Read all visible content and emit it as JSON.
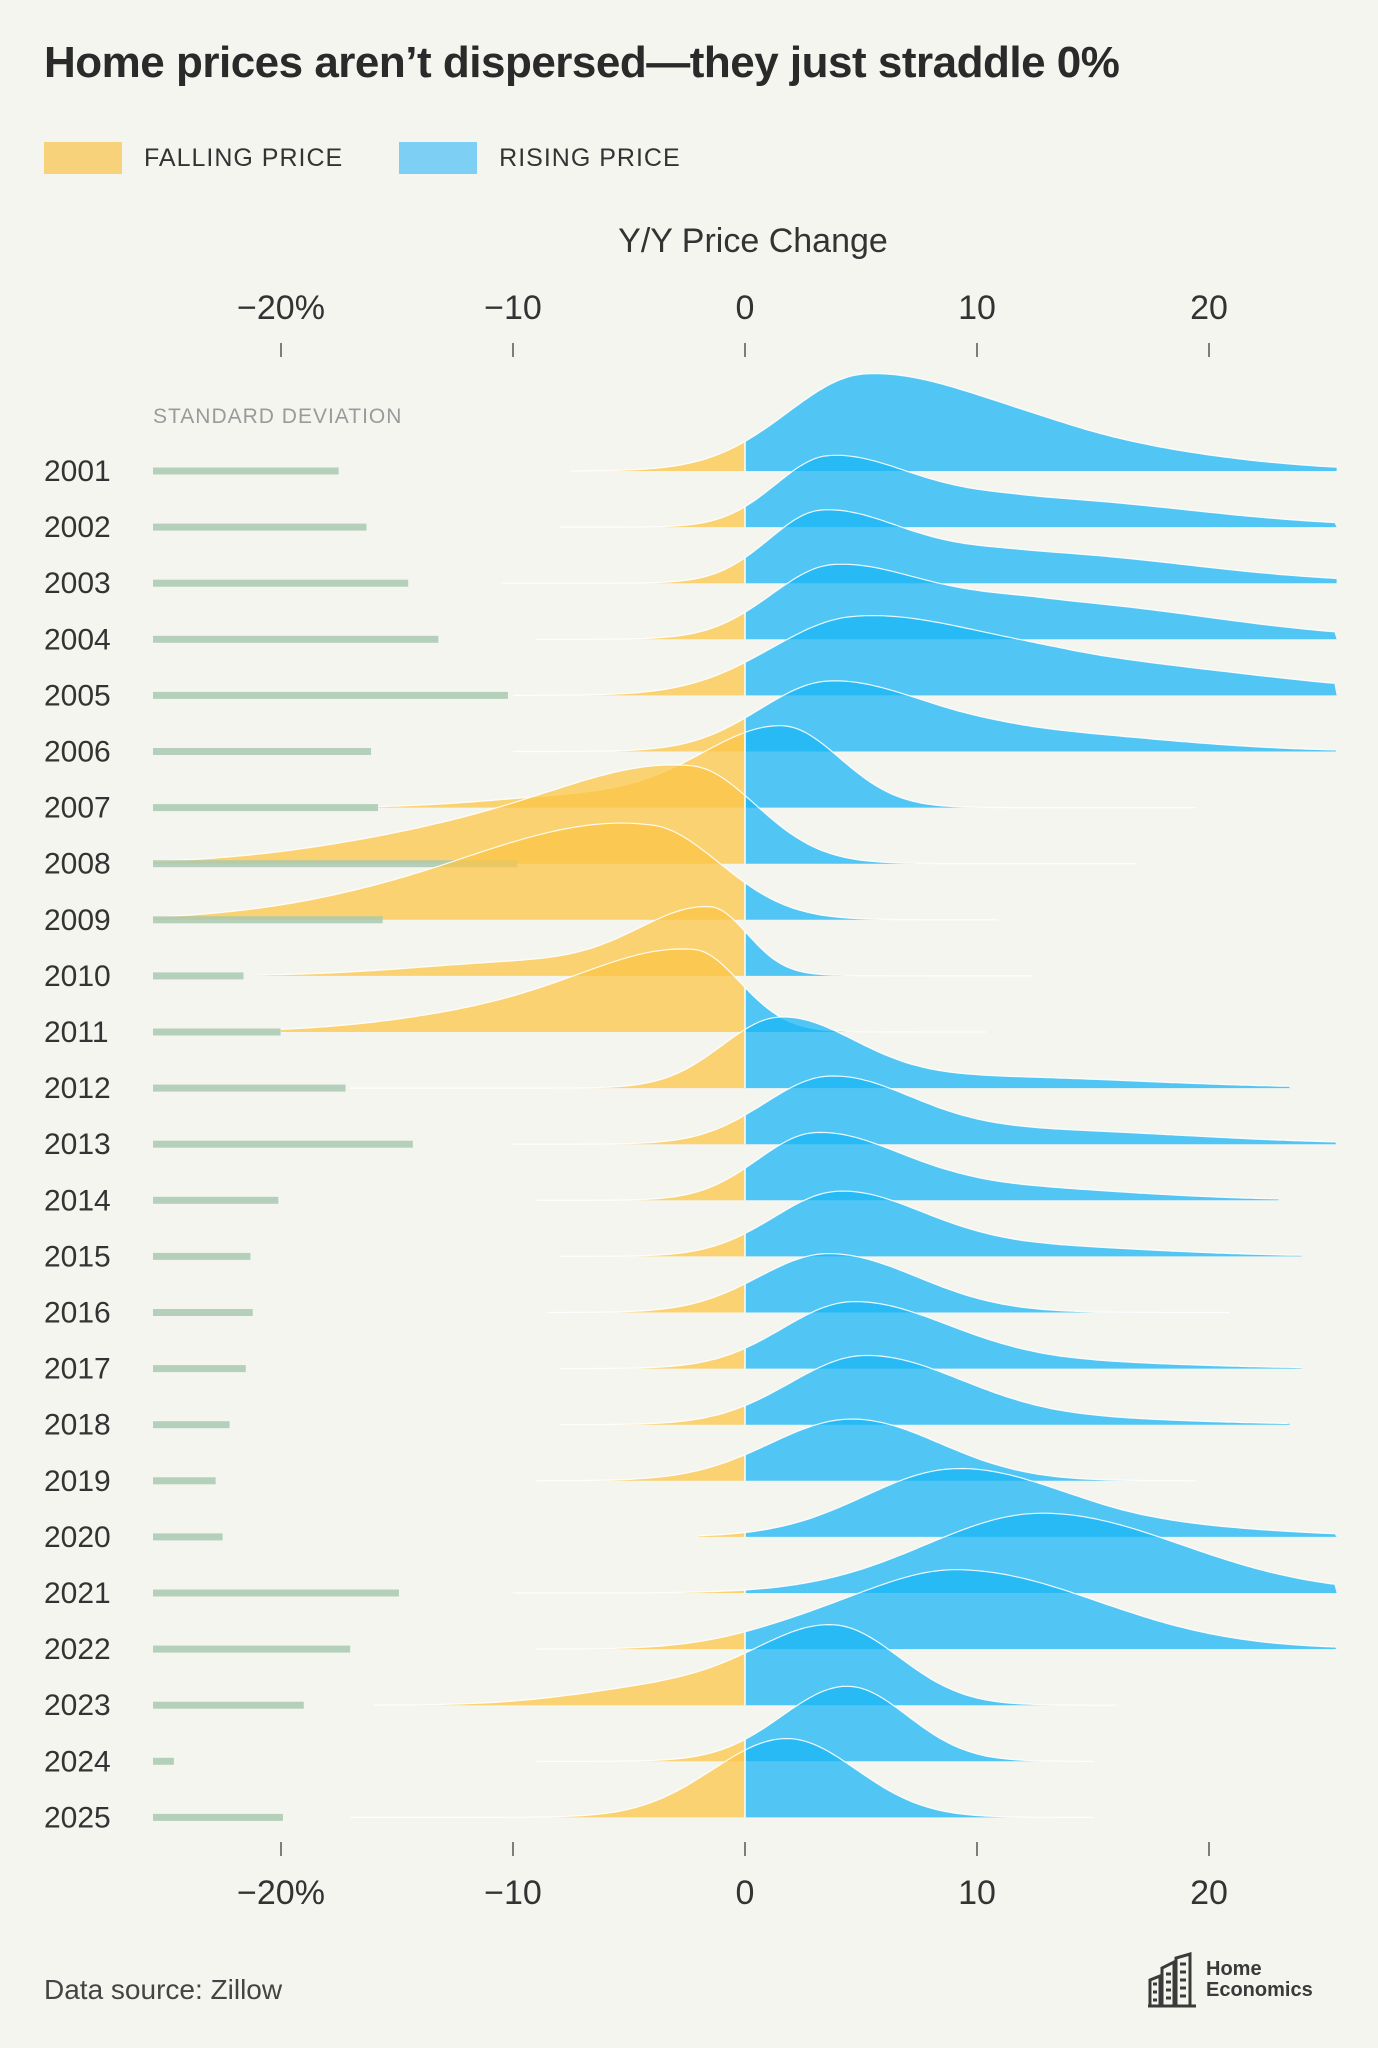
{
  "title": "Home prices aren’t dispersed—they just straddle 0%",
  "legend": {
    "falling_label": "FALLING PRICE",
    "rising_label": "RISING PRICE"
  },
  "colors": {
    "falling": "#fbc647",
    "rising": "#1ab6f6",
    "falling_swatch": "#f8d27a",
    "rising_swatch": "#7dcff3",
    "stdev_bar": "#a9c9b0",
    "background": "#f5f5f0"
  },
  "source": "Data source: Zillow",
  "logo": {
    "line1": "Home",
    "line2": "Economics"
  },
  "chart_data": {
    "type": "ridgeline",
    "title": "Y/Y Price Change",
    "xlabel": "Y/Y Price Change",
    "x_ticks": [
      -20,
      -10,
      0,
      10,
      20
    ],
    "x_tick_labels": [
      "−20%",
      "−10",
      "0",
      "10",
      "20"
    ],
    "xlim": [
      -25.5,
      25.5
    ],
    "stdev_label": "STANDARD DEVIATION",
    "stdev_unit": "% points",
    "series": [
      {
        "year": "2001",
        "stdev": 8.0,
        "x_min": -7.5,
        "x_max": 25.5,
        "peaks": [
          {
            "mu": 5.2,
            "sl": 3.4,
            "sr": 5.2,
            "h": 1.0
          },
          {
            "mu": 14,
            "sl": 4,
            "sr": 6,
            "h": 0.25
          }
        ]
      },
      {
        "year": "2002",
        "stdev": 9.2,
        "x_min": -8,
        "x_max": 25.5,
        "peaks": [
          {
            "mu": 3.6,
            "sl": 2.3,
            "sr": 3.5,
            "h": 0.72
          },
          {
            "mu": 12,
            "sl": 4,
            "sr": 7,
            "h": 0.3
          }
        ]
      },
      {
        "year": "2003",
        "stdev": 11.0,
        "x_min": -10.5,
        "x_max": 25.5,
        "peaks": [
          {
            "mu": 3.3,
            "sl": 2.3,
            "sr": 3.5,
            "h": 0.74
          },
          {
            "mu": 12,
            "sl": 4,
            "sr": 7,
            "h": 0.32
          }
        ]
      },
      {
        "year": "2004",
        "stdev": 12.3,
        "x_min": -9,
        "x_max": 25.5,
        "peaks": [
          {
            "mu": 3.8,
            "sl": 2.7,
            "sr": 4.0,
            "h": 0.76
          },
          {
            "mu": 13,
            "sl": 4,
            "sr": 7,
            "h": 0.38
          }
        ]
      },
      {
        "year": "2005",
        "stdev": 15.3,
        "x_min": -10,
        "x_max": 25.5,
        "peaks": [
          {
            "mu": 4.6,
            "sl": 3.6,
            "sr": 5.0,
            "h": 0.77
          },
          {
            "mu": 14,
            "sl": 5,
            "sr": 8,
            "h": 0.35
          }
        ]
      },
      {
        "year": "2006",
        "stdev": 9.4,
        "x_min": -10,
        "x_max": 25.5,
        "peaks": [
          {
            "mu": 3.6,
            "sl": 3.0,
            "sr": 4.0,
            "h": 0.72
          },
          {
            "mu": 12,
            "sl": 4,
            "sr": 6,
            "h": 0.2
          }
        ]
      },
      {
        "year": "2007",
        "stdev": 9.7,
        "x_min": -16,
        "x_max": 19.5,
        "peaks": [
          {
            "mu": 1.6,
            "sl": 3.5,
            "sr": 2.5,
            "h": 0.85
          },
          {
            "mu": -7,
            "sl": 4,
            "sr": 4,
            "h": 0.12
          }
        ]
      },
      {
        "year": "2008",
        "stdev": 15.7,
        "x_min": -25.5,
        "x_max": 17,
        "peaks": [
          {
            "mu": -2.3,
            "sl": 5.5,
            "sr": 2.8,
            "h": 0.95
          },
          {
            "mu": -12,
            "sl": 6,
            "sr": 6,
            "h": 0.3
          }
        ]
      },
      {
        "year": "2009",
        "stdev": 9.9,
        "x_min": -25.5,
        "x_max": 11,
        "peaks": [
          {
            "mu": -4.0,
            "sl": 5.5,
            "sr": 3.0,
            "h": 0.9
          },
          {
            "mu": -12,
            "sl": 6,
            "sr": 5,
            "h": 0.35
          }
        ]
      },
      {
        "year": "2010",
        "stdev": 3.9,
        "x_min": -21,
        "x_max": 12.5,
        "peaks": [
          {
            "mu": -1.5,
            "sl": 3.0,
            "sr": 1.6,
            "h": 0.68
          },
          {
            "mu": -9,
            "sl": 5,
            "sr": 5,
            "h": 0.15
          }
        ]
      },
      {
        "year": "2011",
        "stdev": 5.5,
        "x_min": -20,
        "x_max": 10.5,
        "peaks": [
          {
            "mu": -2.2,
            "sl": 4.5,
            "sr": 2.0,
            "h": 0.81
          },
          {
            "mu": -10,
            "sl": 5,
            "sr": 5,
            "h": 0.2
          }
        ]
      },
      {
        "year": "2012",
        "stdev": 8.3,
        "x_min": -17,
        "x_max": 23.5,
        "peaks": [
          {
            "mu": 1.5,
            "sl": 2.5,
            "sr": 3.2,
            "h": 0.72
          },
          {
            "mu": 10,
            "sl": 5,
            "sr": 7,
            "h": 0.12
          }
        ]
      },
      {
        "year": "2013",
        "stdev": 11.2,
        "x_min": -10,
        "x_max": 25.5,
        "peaks": [
          {
            "mu": 3.6,
            "sl": 2.8,
            "sr": 3.5,
            "h": 0.68
          },
          {
            "mu": 12,
            "sl": 5,
            "sr": 7,
            "h": 0.15
          }
        ]
      },
      {
        "year": "2014",
        "stdev": 5.4,
        "x_min": -9,
        "x_max": 23,
        "peaks": [
          {
            "mu": 3.0,
            "sl": 2.5,
            "sr": 3.5,
            "h": 0.68
          },
          {
            "mu": 10,
            "sl": 4,
            "sr": 6,
            "h": 0.15
          }
        ]
      },
      {
        "year": "2015",
        "stdev": 4.2,
        "x_min": -8,
        "x_max": 24,
        "peaks": [
          {
            "mu": 4.0,
            "sl": 2.8,
            "sr": 3.5,
            "h": 0.66
          },
          {
            "mu": 11,
            "sl": 4,
            "sr": 6,
            "h": 0.12
          }
        ]
      },
      {
        "year": "2016",
        "stdev": 4.3,
        "x_min": -8.5,
        "x_max": 21,
        "peaks": [
          {
            "mu": 3.6,
            "sl": 3.0,
            "sr": 3.8,
            "h": 0.62
          }
        ]
      },
      {
        "year": "2017",
        "stdev": 4.0,
        "x_min": -8,
        "x_max": 24,
        "peaks": [
          {
            "mu": 4.6,
            "sl": 3.0,
            "sr": 4.0,
            "h": 0.69
          },
          {
            "mu": 12,
            "sl": 4,
            "sr": 6,
            "h": 0.08
          }
        ]
      },
      {
        "year": "2018",
        "stdev": 3.3,
        "x_min": -8,
        "x_max": 23.5,
        "peaks": [
          {
            "mu": 5.1,
            "sl": 3.2,
            "sr": 4.0,
            "h": 0.71
          },
          {
            "mu": 12,
            "sl": 4,
            "sr": 6,
            "h": 0.08
          }
        ]
      },
      {
        "year": "2019",
        "stdev": 2.7,
        "x_min": -9,
        "x_max": 19.5,
        "peaks": [
          {
            "mu": 4.6,
            "sl": 3.5,
            "sr": 3.8,
            "h": 0.65
          }
        ]
      },
      {
        "year": "2020",
        "stdev": 3.0,
        "x_min": -2,
        "x_max": 25.5,
        "peaks": [
          {
            "mu": 8.8,
            "sl": 3.8,
            "sr": 4.2,
            "h": 0.67
          },
          {
            "mu": 15,
            "sl": 4,
            "sr": 6,
            "h": 0.15
          }
        ]
      },
      {
        "year": "2021",
        "stdev": 10.6,
        "x_min": -10,
        "x_max": 25.5,
        "peaks": [
          {
            "mu": 12.8,
            "sl": 5.0,
            "sr": 6.0,
            "h": 0.84
          }
        ]
      },
      {
        "year": "2022",
        "stdev": 8.5,
        "x_min": -9,
        "x_max": 25.5,
        "peaks": [
          {
            "mu": 9.2,
            "sl": 4.5,
            "sr": 6.0,
            "h": 0.83
          },
          {
            "mu": 2,
            "sl": 3,
            "sr": 3,
            "h": 0.1
          }
        ]
      },
      {
        "year": "2023",
        "stdev": 6.5,
        "x_min": -16,
        "x_max": 16,
        "peaks": [
          {
            "mu": 3.9,
            "sl": 3.3,
            "sr": 2.8,
            "h": 0.8
          },
          {
            "mu": -3,
            "sl": 4,
            "sr": 4,
            "h": 0.2
          }
        ]
      },
      {
        "year": "2024",
        "stdev": 0.9,
        "x_min": -9,
        "x_max": 15,
        "peaks": [
          {
            "mu": 4.4,
            "sl": 2.8,
            "sr": 2.6,
            "h": 0.79
          }
        ]
      },
      {
        "year": "2025",
        "stdev": 5.6,
        "x_min": -17,
        "x_max": 15,
        "peaks": [
          {
            "mu": 1.8,
            "sl": 3.2,
            "sr": 3.0,
            "h": 0.83
          }
        ]
      }
    ]
  }
}
